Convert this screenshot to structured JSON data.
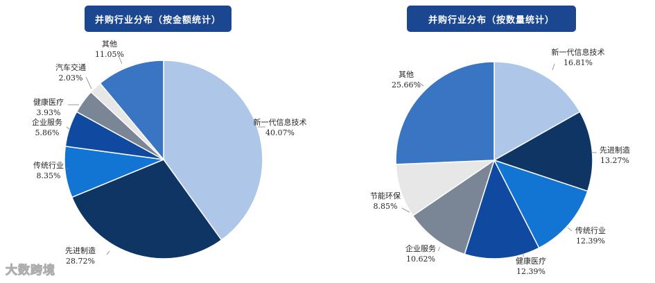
{
  "chart_data": [
    {
      "type": "pie",
      "title": "并购行业分布（按金额统计）",
      "slices": [
        {
          "label": "新一代信息技术",
          "value": 40.07,
          "value_text": "40.07%",
          "color": "#aec7e8"
        },
        {
          "label": "先进制造",
          "value": 28.72,
          "value_text": "28.72%",
          "color": "#0e3564"
        },
        {
          "label": "传统行业",
          "value": 8.35,
          "value_text": "8.35%",
          "color": "#1274d3"
        },
        {
          "label": "企业服务",
          "value": 5.86,
          "value_text": "5.86%",
          "color": "#0f4aa0"
        },
        {
          "label": "健康医疗",
          "value": 3.93,
          "value_text": "3.93%",
          "color": "#7a8696"
        },
        {
          "label": "汽车交通",
          "value": 2.03,
          "value_text": "2.03%",
          "color": "#e7e7e7"
        },
        {
          "label": "其他",
          "value": 11.05,
          "value_text": "11.05%",
          "color": "#3a75c4"
        }
      ]
    },
    {
      "type": "pie",
      "title": "并购行业分布（按数量统计）",
      "slices": [
        {
          "label": "新一代信息技术",
          "value": 16.81,
          "value_text": "16.81%",
          "color": "#aec7e8"
        },
        {
          "label": "先进制造",
          "value": 13.27,
          "value_text": "13.27%",
          "color": "#0e3564"
        },
        {
          "label": "传统行业",
          "value": 12.39,
          "value_text": "12.39%",
          "color": "#1274d3"
        },
        {
          "label": "健康医疗",
          "value": 12.39,
          "value_text": "12.39%",
          "color": "#0f4aa0"
        },
        {
          "label": "企业服务",
          "value": 10.62,
          "value_text": "10.62%",
          "color": "#7a8696"
        },
        {
          "label": "节能环保",
          "value": 8.85,
          "value_text": "8.85%",
          "color": "#e7e7e7"
        },
        {
          "label": "其他",
          "value": 25.66,
          "value_text": "25.66%",
          "color": "#3a75c4"
        }
      ]
    }
  ],
  "watermark": "大数跨境"
}
